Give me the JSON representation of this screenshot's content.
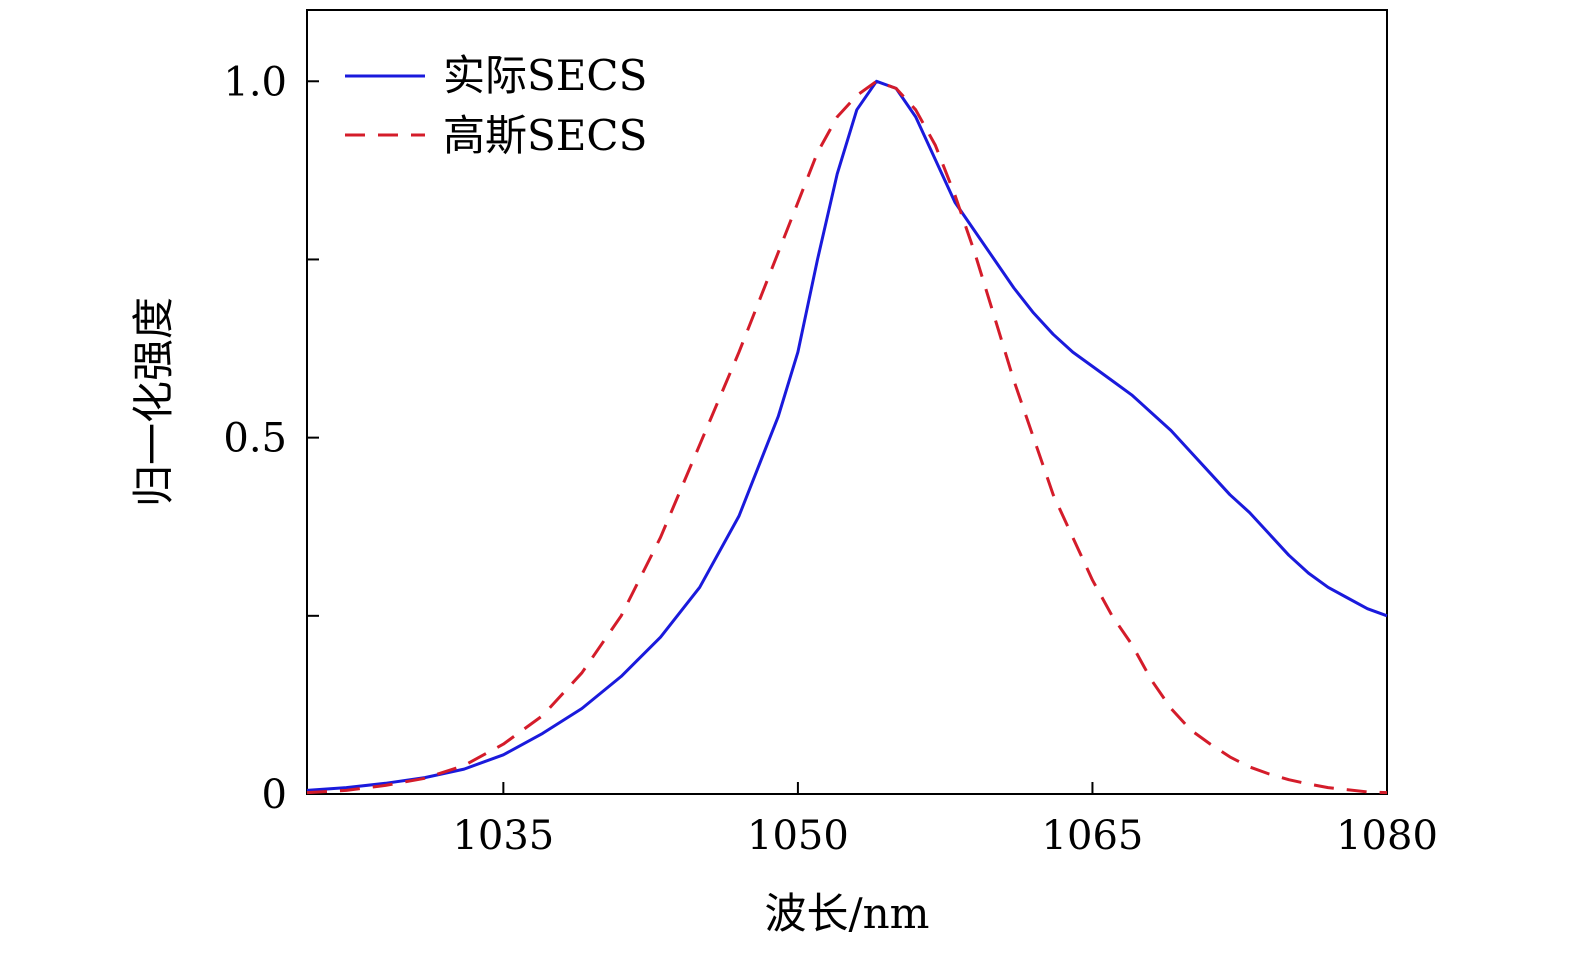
{
  "chart_data": {
    "type": "line",
    "title": "",
    "xlabel": "波长/nm",
    "ylabel": "归一化强度",
    "xlim": [
      1025,
      1080
    ],
    "ylim": [
      0,
      1.1
    ],
    "x_ticks": [
      1035,
      1050,
      1065,
      1080
    ],
    "x_tick_labels": [
      "1035",
      "1050",
      "1065",
      "1080"
    ],
    "y_ticks": [
      0,
      0.25,
      0.5,
      0.75,
      1.0
    ],
    "y_tick_labels": [
      "0",
      "",
      "0.5",
      "",
      "1.0"
    ],
    "grid": false,
    "legend_position": "top-left",
    "series": [
      {
        "name": "实际SECS",
        "color": "#1a1adc",
        "style": "solid",
        "points": [
          [
            1025,
            0.005
          ],
          [
            1027,
            0.009
          ],
          [
            1029,
            0.015
          ],
          [
            1031,
            0.023
          ],
          [
            1033,
            0.035
          ],
          [
            1035,
            0.055
          ],
          [
            1037,
            0.085
          ],
          [
            1039,
            0.12
          ],
          [
            1041,
            0.165
          ],
          [
            1043,
            0.22
          ],
          [
            1045,
            0.29
          ],
          [
            1047,
            0.39
          ],
          [
            1049,
            0.53
          ],
          [
            1050,
            0.62
          ],
          [
            1051,
            0.75
          ],
          [
            1052,
            0.87
          ],
          [
            1053,
            0.96
          ],
          [
            1054,
            1.0
          ],
          [
            1055,
            0.99
          ],
          [
            1056,
            0.95
          ],
          [
            1057,
            0.89
          ],
          [
            1058,
            0.83
          ],
          [
            1059,
            0.79
          ],
          [
            1060,
            0.75
          ],
          [
            1061,
            0.71
          ],
          [
            1062,
            0.675
          ],
          [
            1063,
            0.645
          ],
          [
            1064,
            0.62
          ],
          [
            1065,
            0.6
          ],
          [
            1066,
            0.58
          ],
          [
            1067,
            0.56
          ],
          [
            1068,
            0.535
          ],
          [
            1069,
            0.51
          ],
          [
            1070,
            0.48
          ],
          [
            1071,
            0.45
          ],
          [
            1072,
            0.42
          ],
          [
            1073,
            0.395
          ],
          [
            1074,
            0.365
          ],
          [
            1075,
            0.335
          ],
          [
            1076,
            0.31
          ],
          [
            1077,
            0.29
          ],
          [
            1078,
            0.275
          ],
          [
            1079,
            0.26
          ],
          [
            1080,
            0.25
          ]
        ]
      },
      {
        "name": "高斯SECS",
        "color": "#d41c2a",
        "style": "dashed",
        "points": [
          [
            1025,
            0.002
          ],
          [
            1027,
            0.005
          ],
          [
            1029,
            0.012
          ],
          [
            1031,
            0.022
          ],
          [
            1033,
            0.04
          ],
          [
            1035,
            0.07
          ],
          [
            1037,
            0.11
          ],
          [
            1039,
            0.17
          ],
          [
            1041,
            0.25
          ],
          [
            1043,
            0.36
          ],
          [
            1045,
            0.49
          ],
          [
            1047,
            0.62
          ],
          [
            1049,
            0.76
          ],
          [
            1050,
            0.83
          ],
          [
            1051,
            0.9
          ],
          [
            1052,
            0.95
          ],
          [
            1053,
            0.98
          ],
          [
            1054,
            1.0
          ],
          [
            1055,
            0.99
          ],
          [
            1056,
            0.96
          ],
          [
            1057,
            0.91
          ],
          [
            1058,
            0.84
          ],
          [
            1059,
            0.76
          ],
          [
            1060,
            0.67
          ],
          [
            1061,
            0.58
          ],
          [
            1062,
            0.5
          ],
          [
            1063,
            0.42
          ],
          [
            1064,
            0.36
          ],
          [
            1065,
            0.3
          ],
          [
            1066,
            0.25
          ],
          [
            1067,
            0.21
          ],
          [
            1068,
            0.16
          ],
          [
            1069,
            0.12
          ],
          [
            1070,
            0.09
          ],
          [
            1071,
            0.07
          ],
          [
            1072,
            0.052
          ],
          [
            1073,
            0.038
          ],
          [
            1074,
            0.028
          ],
          [
            1075,
            0.02
          ],
          [
            1076,
            0.014
          ],
          [
            1077,
            0.009
          ],
          [
            1078,
            0.006
          ],
          [
            1079,
            0.003
          ],
          [
            1080,
            0.002
          ]
        ]
      }
    ]
  }
}
